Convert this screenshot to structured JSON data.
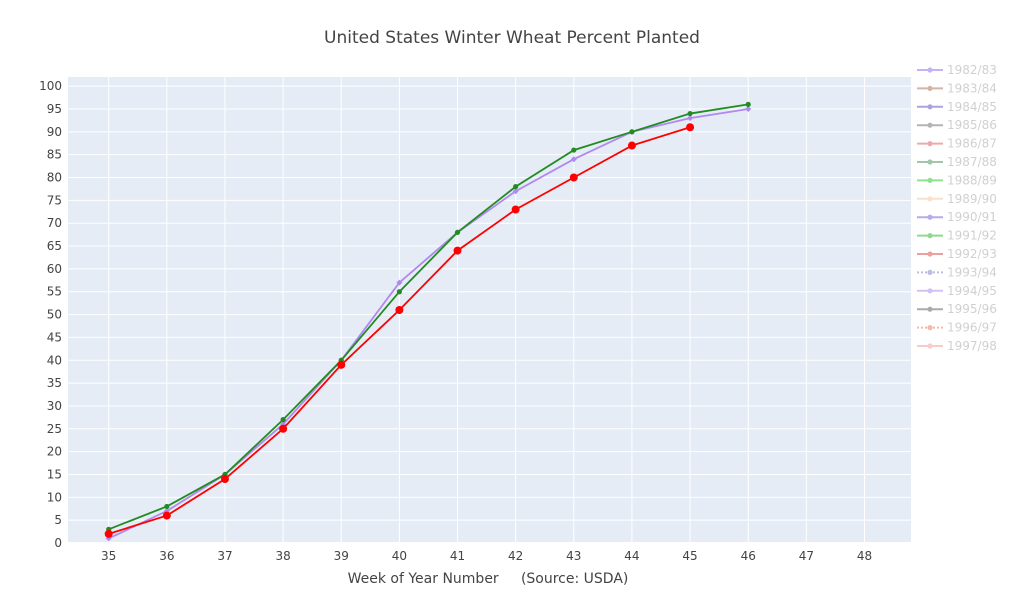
{
  "chart_data": {
    "type": "line",
    "title": "United States Winter Wheat Percent Planted",
    "xlabel": "Week of Year Number     (Source: USDA)",
    "ylabel": "",
    "xlim": [
      34.3,
      48.8
    ],
    "ylim": [
      0,
      102
    ],
    "x_ticks": [
      35,
      36,
      37,
      38,
      39,
      40,
      41,
      42,
      43,
      44,
      45,
      46,
      47,
      48
    ],
    "y_ticks": [
      0,
      5,
      10,
      15,
      20,
      25,
      30,
      35,
      40,
      45,
      50,
      55,
      60,
      65,
      70,
      75,
      80,
      85,
      90,
      95,
      100
    ],
    "grid": true,
    "legend_position": "right",
    "series": [
      {
        "name": "1982/83",
        "color": "#9b72e6",
        "visible": false
      },
      {
        "name": "1983/84",
        "color": "#b0785f",
        "visible": false
      },
      {
        "name": "1984/85",
        "color": "#6f55c6",
        "visible": false
      },
      {
        "name": "1985/86",
        "color": "#777777",
        "visible": false
      },
      {
        "name": "1986/87",
        "color": "#e06666",
        "visible": false
      },
      {
        "name": "1987/88",
        "color": "#559966",
        "visible": false
      },
      {
        "name": "1988/89",
        "color": "#33cc33",
        "visible": false
      },
      {
        "name": "1989/90",
        "color": "#f4c7a0",
        "visible": false
      },
      {
        "name": "1990/91",
        "color": "#7a66dd",
        "visible": false
      },
      {
        "name": "1991/92",
        "color": "#33bb33",
        "visible": false
      },
      {
        "name": "1992/93",
        "color": "#dd5555",
        "visible": false
      },
      {
        "name": "1993/94",
        "color": "#8888cc",
        "visible": false,
        "dashed": true
      },
      {
        "name": "1994/95",
        "color": "#b08ee8",
        "visible": false
      },
      {
        "name": "1995/96",
        "color": "#666666",
        "visible": false
      },
      {
        "name": "1996/97",
        "color": "#f08060",
        "visible": false,
        "dashed": true
      },
      {
        "name": "1997/98",
        "color": "#f4a0a0",
        "visible": false
      },
      {
        "name": "",
        "color": "#b088f0",
        "visible": true,
        "marker": "diamond",
        "x": [
          35,
          36,
          37,
          38,
          39,
          40,
          41,
          42,
          43,
          44,
          45,
          46
        ],
        "y": [
          1,
          7,
          15,
          26,
          40,
          57,
          68,
          77,
          84,
          90,
          93,
          95
        ]
      },
      {
        "name": "",
        "color": "#228b22",
        "visible": true,
        "marker": "circle-small",
        "x": [
          35,
          36,
          37,
          38,
          39,
          40,
          41,
          42,
          43,
          44,
          45,
          46
        ],
        "y": [
          3,
          8,
          15,
          27,
          40,
          55,
          68,
          78,
          86,
          90,
          94,
          96
        ]
      },
      {
        "name": "",
        "color": "#ff0000",
        "visible": true,
        "marker": "circle-large",
        "x": [
          35,
          36,
          37,
          38,
          39,
          40,
          41,
          42,
          43,
          44,
          45
        ],
        "y": [
          2,
          6,
          14,
          25,
          39,
          51,
          64,
          73,
          80,
          87,
          91
        ]
      }
    ]
  }
}
